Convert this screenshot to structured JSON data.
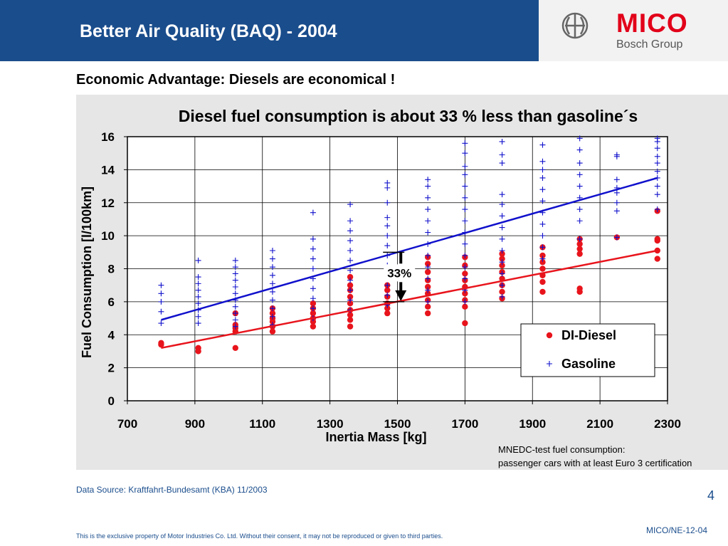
{
  "header": {
    "title": "Better Air Quality (BAQ) - 2004",
    "logo_main": "MICO",
    "logo_sub": "Bosch Group"
  },
  "subtitle": "Economic Advantage: Diesels are economical !",
  "footer": {
    "notes_line1": "MNEDC-test fuel consumption:",
    "notes_line2": "passenger cars with at least Euro 3 certification",
    "source": "Data Source: Kraftfahrt-Bundesamt (KBA) 11/2003",
    "page_number": "4",
    "doc_id": "MICO/NE-12-04",
    "legal": "This is the exclusive property of Motor Industries Co. Ltd. Without their consent, it may not be reproduced or given to third parties."
  },
  "colors": {
    "header_blue": "#1a4d8c",
    "diesel_red": "#e8141c",
    "gasoline_blue": "#1010cc",
    "panel_gray": "#e6e6e6"
  },
  "chart_data": {
    "type": "scatter",
    "title": "Diesel fuel consumption is about 33 % less than gasoline´s",
    "xlabel": "Inertia Mass [kg]",
    "ylabel": "Fuel Consumption [l/100km]",
    "xlim": [
      700,
      2300
    ],
    "ylim": [
      0,
      16
    ],
    "xticks": [
      700,
      900,
      1100,
      1300,
      1500,
      1700,
      1900,
      2100,
      2300
    ],
    "yticks": [
      0,
      2,
      4,
      6,
      8,
      10,
      12,
      14,
      16
    ],
    "grid": true,
    "legend_position": "bottom-right",
    "series": [
      {
        "name": "DI-Diesel",
        "marker": "dot",
        "color": "#e8141c",
        "points": [
          [
            800,
            3.5
          ],
          [
            800,
            3.4
          ],
          [
            910,
            3.2
          ],
          [
            910,
            3.0
          ],
          [
            1020,
            3.2
          ],
          [
            1020,
            4.2
          ],
          [
            1020,
            4.4
          ],
          [
            1020,
            4.6
          ],
          [
            1020,
            5.3
          ],
          [
            1130,
            4.2
          ],
          [
            1130,
            4.5
          ],
          [
            1130,
            4.8
          ],
          [
            1130,
            5.0
          ],
          [
            1130,
            5.3
          ],
          [
            1130,
            5.6
          ],
          [
            1250,
            4.5
          ],
          [
            1250,
            4.8
          ],
          [
            1250,
            5.0
          ],
          [
            1250,
            5.3
          ],
          [
            1250,
            5.6
          ],
          [
            1250,
            5.9
          ],
          [
            1360,
            4.5
          ],
          [
            1360,
            4.9
          ],
          [
            1360,
            5.2
          ],
          [
            1360,
            5.5
          ],
          [
            1360,
            5.9
          ],
          [
            1360,
            6.3
          ],
          [
            1360,
            6.7
          ],
          [
            1360,
            7.0
          ],
          [
            1360,
            7.5
          ],
          [
            1470,
            5.3
          ],
          [
            1470,
            5.6
          ],
          [
            1470,
            5.9
          ],
          [
            1470,
            6.3
          ],
          [
            1470,
            6.7
          ],
          [
            1470,
            7.0
          ],
          [
            1470,
            7.5
          ],
          [
            1470,
            8.0
          ],
          [
            1590,
            5.3
          ],
          [
            1590,
            5.7
          ],
          [
            1590,
            6.1
          ],
          [
            1590,
            6.5
          ],
          [
            1590,
            6.9
          ],
          [
            1590,
            7.3
          ],
          [
            1590,
            7.8
          ],
          [
            1590,
            8.3
          ],
          [
            1590,
            8.7
          ],
          [
            1700,
            4.7
          ],
          [
            1700,
            5.7
          ],
          [
            1700,
            6.1
          ],
          [
            1700,
            6.5
          ],
          [
            1700,
            6.9
          ],
          [
            1700,
            7.3
          ],
          [
            1700,
            7.7
          ],
          [
            1700,
            8.2
          ],
          [
            1700,
            8.7
          ],
          [
            1810,
            6.2
          ],
          [
            1810,
            6.6
          ],
          [
            1810,
            7.0
          ],
          [
            1810,
            7.4
          ],
          [
            1810,
            7.8
          ],
          [
            1810,
            8.2
          ],
          [
            1810,
            8.6
          ],
          [
            1810,
            8.9
          ],
          [
            1930,
            6.6
          ],
          [
            1930,
            7.2
          ],
          [
            1930,
            7.6
          ],
          [
            1930,
            8.0
          ],
          [
            1930,
            8.4
          ],
          [
            1930,
            8.8
          ],
          [
            1930,
            9.3
          ],
          [
            2040,
            6.6
          ],
          [
            2040,
            6.8
          ],
          [
            2040,
            8.9
          ],
          [
            2040,
            9.2
          ],
          [
            2040,
            9.5
          ],
          [
            2040,
            9.8
          ],
          [
            2150,
            9.9
          ],
          [
            2270,
            8.6
          ],
          [
            2270,
            9.1
          ],
          [
            2270,
            9.7
          ],
          [
            2270,
            9.8
          ],
          [
            2270,
            11.5
          ]
        ],
        "trend": [
          [
            800,
            3.2
          ],
          [
            2270,
            9.1
          ]
        ]
      },
      {
        "name": "Gasoline",
        "marker": "plus",
        "color": "#1010cc",
        "points": [
          [
            800,
            4.7
          ],
          [
            800,
            5.4
          ],
          [
            800,
            6.0
          ],
          [
            800,
            6.5
          ],
          [
            800,
            7.0
          ],
          [
            910,
            4.7
          ],
          [
            910,
            5.1
          ],
          [
            910,
            5.5
          ],
          [
            910,
            5.9
          ],
          [
            910,
            6.3
          ],
          [
            910,
            6.7
          ],
          [
            910,
            7.1
          ],
          [
            910,
            7.5
          ],
          [
            910,
            8.5
          ],
          [
            1020,
            4.5
          ],
          [
            1020,
            4.9
          ],
          [
            1020,
            5.3
          ],
          [
            1020,
            5.7
          ],
          [
            1020,
            6.1
          ],
          [
            1020,
            6.5
          ],
          [
            1020,
            6.9
          ],
          [
            1020,
            7.3
          ],
          [
            1020,
            7.7
          ],
          [
            1020,
            8.1
          ],
          [
            1020,
            8.5
          ],
          [
            1130,
            4.6
          ],
          [
            1130,
            5.1
          ],
          [
            1130,
            5.6
          ],
          [
            1130,
            6.1
          ],
          [
            1130,
            6.6
          ],
          [
            1130,
            7.1
          ],
          [
            1130,
            7.6
          ],
          [
            1130,
            8.1
          ],
          [
            1130,
            8.6
          ],
          [
            1130,
            9.1
          ],
          [
            1250,
            5.0
          ],
          [
            1250,
            5.6
          ],
          [
            1250,
            6.2
          ],
          [
            1250,
            6.8
          ],
          [
            1250,
            7.4
          ],
          [
            1250,
            8.0
          ],
          [
            1250,
            8.6
          ],
          [
            1250,
            9.2
          ],
          [
            1250,
            9.8
          ],
          [
            1250,
            11.4
          ],
          [
            1360,
            5.5
          ],
          [
            1360,
            6.1
          ],
          [
            1360,
            6.7
          ],
          [
            1360,
            7.3
          ],
          [
            1360,
            7.9
          ],
          [
            1360,
            8.5
          ],
          [
            1360,
            9.1
          ],
          [
            1360,
            9.7
          ],
          [
            1360,
            10.3
          ],
          [
            1360,
            10.9
          ],
          [
            1360,
            11.9
          ],
          [
            1470,
            5.8
          ],
          [
            1470,
            6.4
          ],
          [
            1470,
            7.0
          ],
          [
            1470,
            7.6
          ],
          [
            1470,
            8.2
          ],
          [
            1470,
            8.8
          ],
          [
            1470,
            9.4
          ],
          [
            1470,
            10.0
          ],
          [
            1470,
            10.6
          ],
          [
            1470,
            11.1
          ],
          [
            1470,
            12.0
          ],
          [
            1470,
            12.9
          ],
          [
            1470,
            13.2
          ],
          [
            1590,
            6.0
          ],
          [
            1590,
            6.7
          ],
          [
            1590,
            7.4
          ],
          [
            1590,
            8.1
          ],
          [
            1590,
            8.8
          ],
          [
            1590,
            9.5
          ],
          [
            1590,
            10.2
          ],
          [
            1590,
            10.9
          ],
          [
            1590,
            11.6
          ],
          [
            1590,
            12.3
          ],
          [
            1590,
            13.0
          ],
          [
            1590,
            13.4
          ],
          [
            1700,
            6.0
          ],
          [
            1700,
            6.7
          ],
          [
            1700,
            7.4
          ],
          [
            1700,
            8.1
          ],
          [
            1700,
            8.8
          ],
          [
            1700,
            9.5
          ],
          [
            1700,
            10.2
          ],
          [
            1700,
            10.9
          ],
          [
            1700,
            11.6
          ],
          [
            1700,
            12.3
          ],
          [
            1700,
            13.0
          ],
          [
            1700,
            13.7
          ],
          [
            1700,
            14.2
          ],
          [
            1700,
            15.0
          ],
          [
            1700,
            15.6
          ],
          [
            1810,
            6.3
          ],
          [
            1810,
            7.0
          ],
          [
            1810,
            7.7
          ],
          [
            1810,
            8.4
          ],
          [
            1810,
            9.1
          ],
          [
            1810,
            9.8
          ],
          [
            1810,
            10.5
          ],
          [
            1810,
            11.2
          ],
          [
            1810,
            11.9
          ],
          [
            1810,
            12.5
          ],
          [
            1810,
            14.4
          ],
          [
            1810,
            14.9
          ],
          [
            1810,
            15.7
          ],
          [
            1930,
            8.6
          ],
          [
            1930,
            9.3
          ],
          [
            1930,
            10.0
          ],
          [
            1930,
            10.7
          ],
          [
            1930,
            11.4
          ],
          [
            1930,
            12.1
          ],
          [
            1930,
            12.8
          ],
          [
            1930,
            13.5
          ],
          [
            1930,
            14.0
          ],
          [
            1930,
            14.5
          ],
          [
            1930,
            15.5
          ],
          [
            2040,
            9.8
          ],
          [
            2040,
            10.9
          ],
          [
            2040,
            11.6
          ],
          [
            2040,
            12.3
          ],
          [
            2040,
            13.0
          ],
          [
            2040,
            13.7
          ],
          [
            2040,
            14.4
          ],
          [
            2040,
            15.2
          ],
          [
            2040,
            15.9
          ],
          [
            2150,
            9.9
          ],
          [
            2150,
            11.5
          ],
          [
            2150,
            12.0
          ],
          [
            2150,
            12.6
          ],
          [
            2150,
            12.9
          ],
          [
            2150,
            13.4
          ],
          [
            2150,
            14.8
          ],
          [
            2150,
            14.9
          ],
          [
            2270,
            11.6
          ],
          [
            2270,
            12.5
          ],
          [
            2270,
            13.0
          ],
          [
            2270,
            13.5
          ],
          [
            2270,
            13.9
          ],
          [
            2270,
            14.4
          ],
          [
            2270,
            14.8
          ],
          [
            2270,
            15.3
          ],
          [
            2270,
            15.7
          ],
          [
            2270,
            15.9
          ]
        ],
        "trend": [
          [
            800,
            4.9
          ],
          [
            2270,
            13.5
          ]
        ]
      }
    ],
    "annotation": {
      "label": "33%",
      "x": 1510,
      "y_top": 9.0,
      "y_bottom": 6.0
    }
  }
}
